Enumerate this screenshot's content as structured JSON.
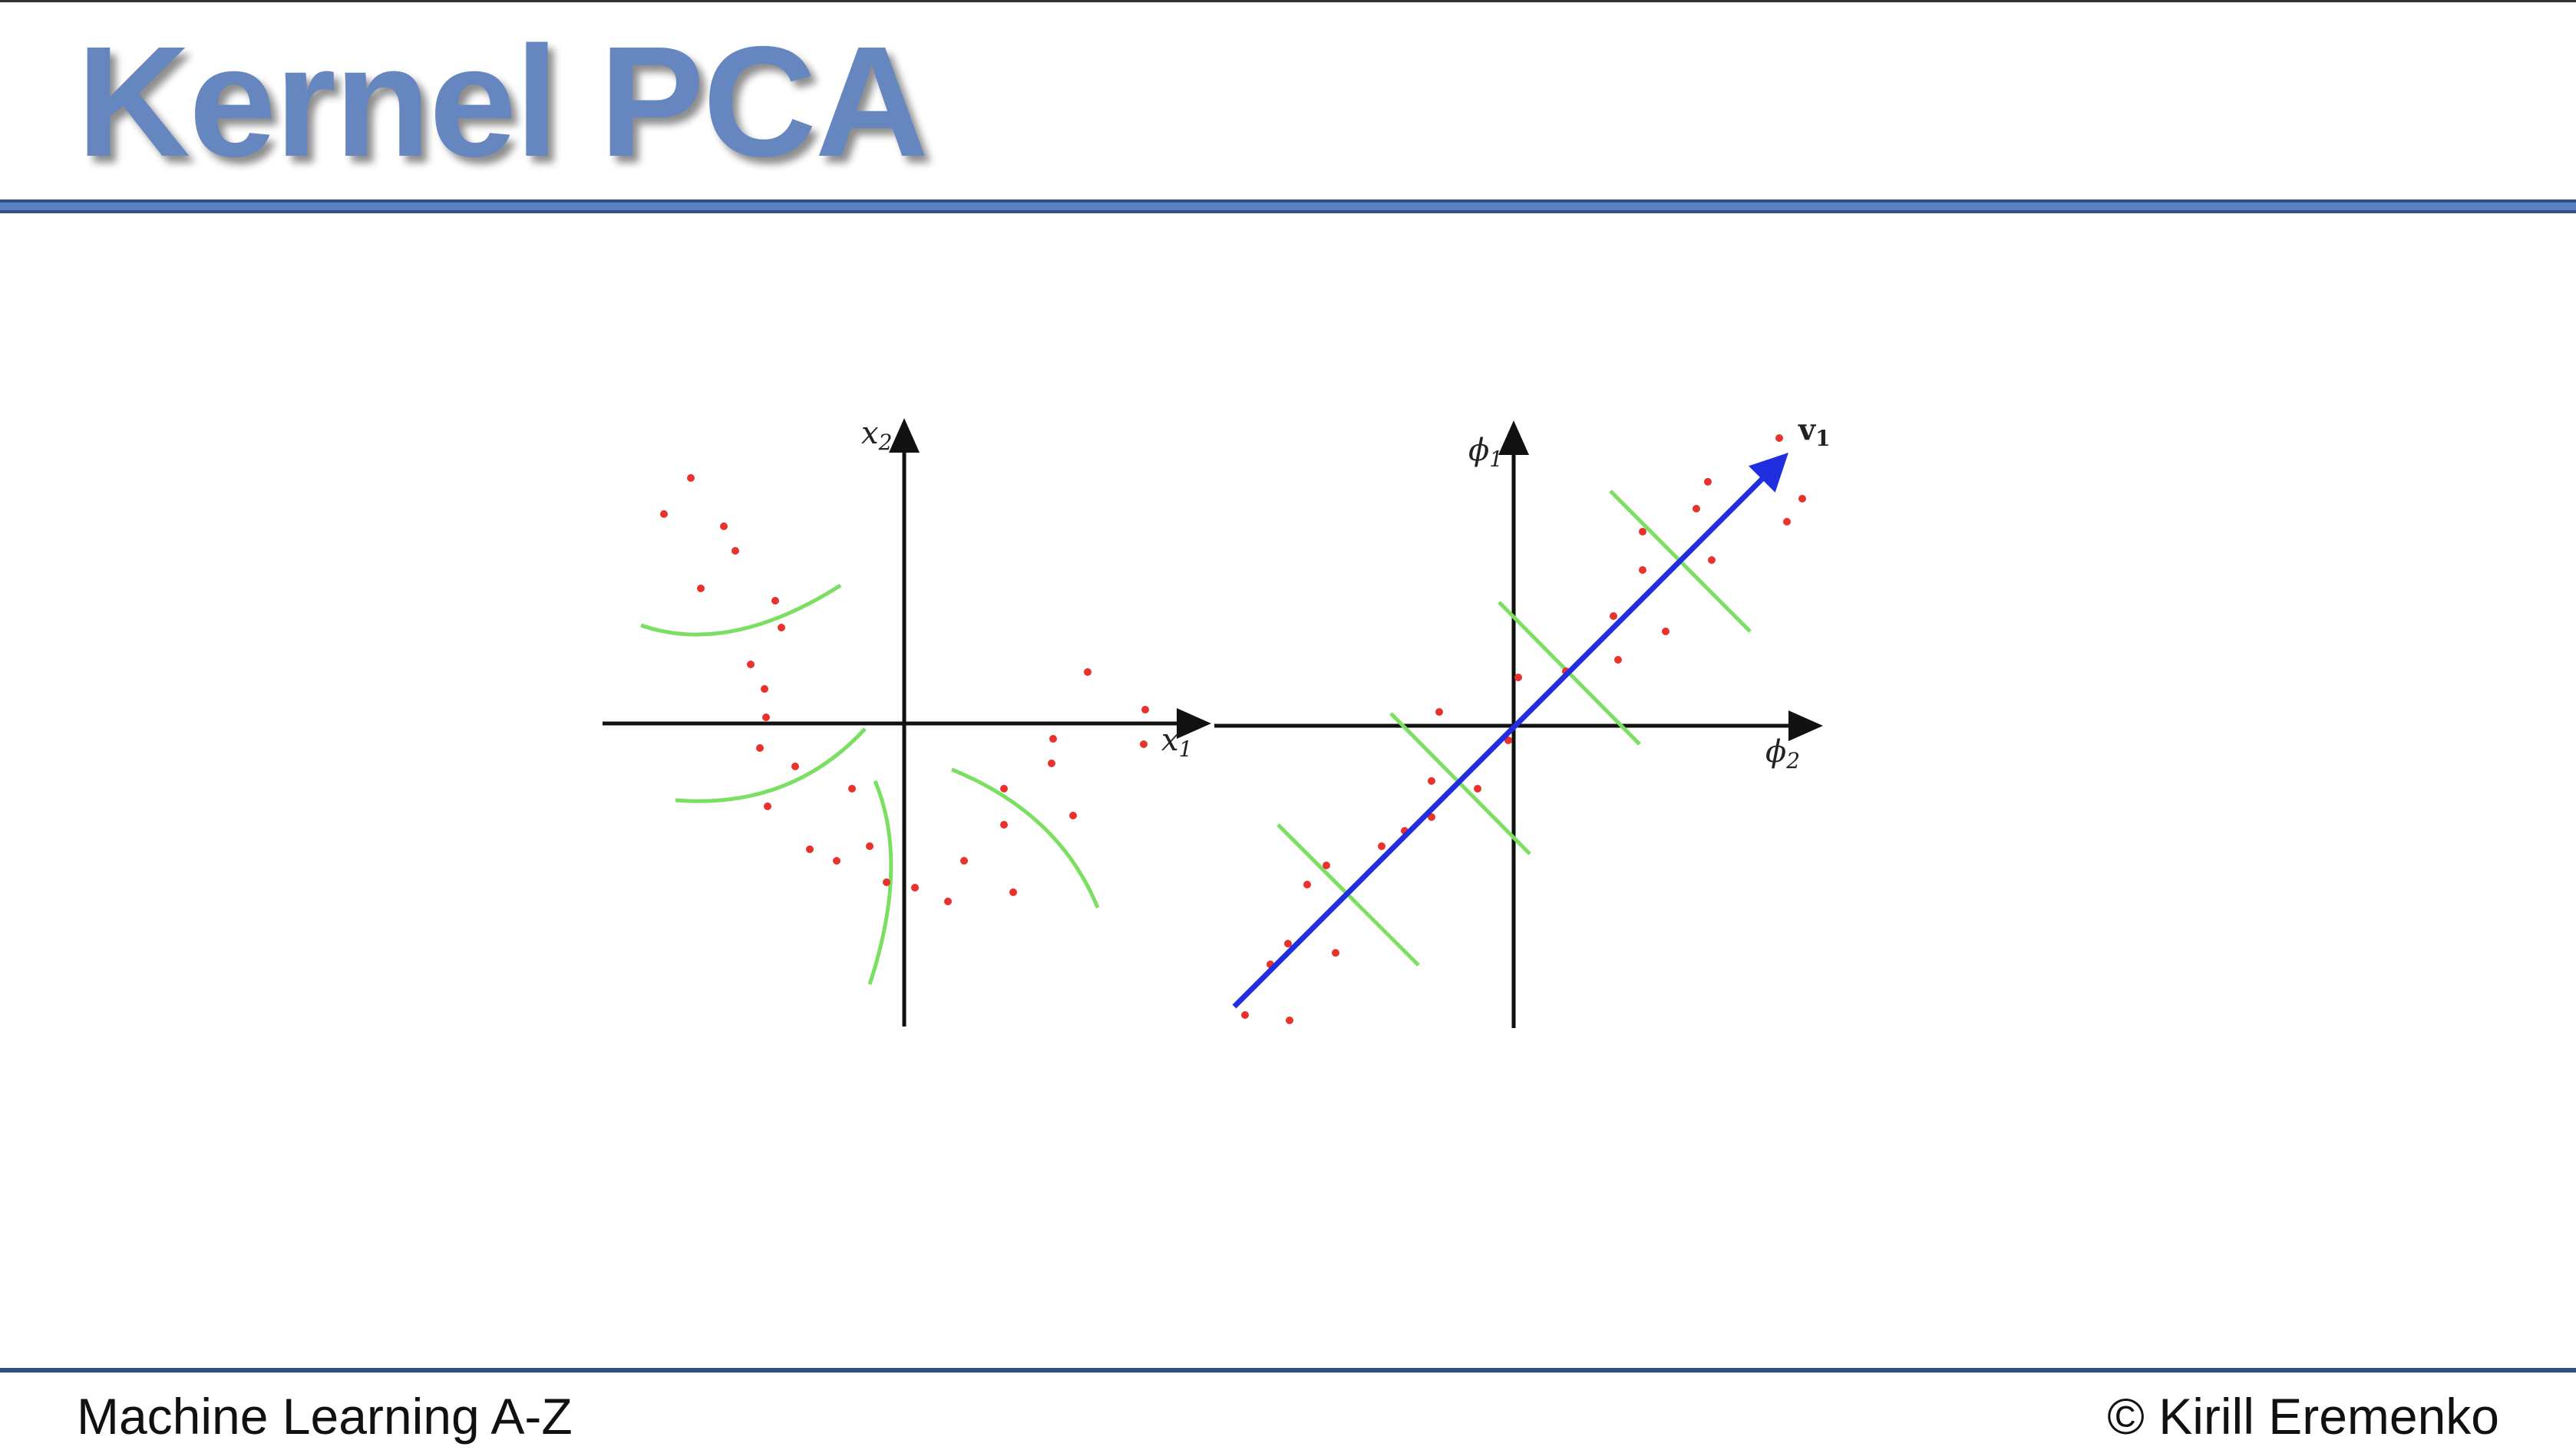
{
  "slide": {
    "title": "Kernel PCA",
    "footer_left": "Machine Learning A-Z",
    "footer_right": "© Kirill Eremenko"
  },
  "left_plot": {
    "x_axis_label": "x",
    "x_axis_sub": "1",
    "y_axis_label": "x",
    "y_axis_sub": "2"
  },
  "right_plot": {
    "x_axis_label": "ϕ",
    "x_axis_sub": "2",
    "y_axis_label": "ϕ",
    "y_axis_sub": "1",
    "vector_label": "v",
    "vector_sub": "1"
  },
  "colors": {
    "title": "#6586bf",
    "rule": "#5a7fc2",
    "points": "#e8322b",
    "contours": "#7be061",
    "eigenvector": "#1f2fe0",
    "axes": "#111111"
  }
}
